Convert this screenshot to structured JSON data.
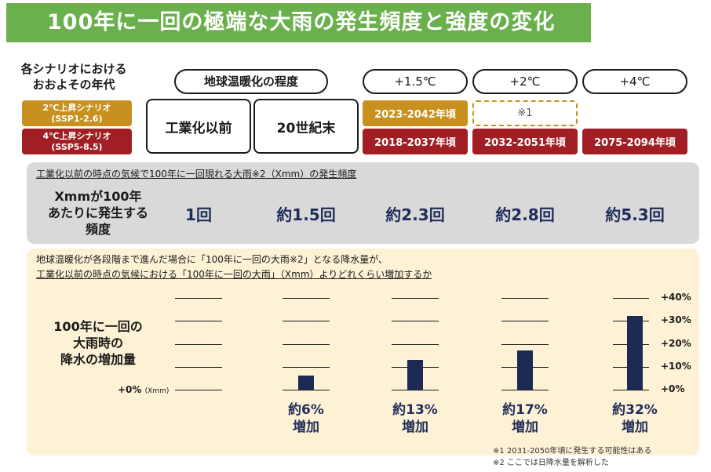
{
  "title": "100年に一回の極端な大雨の発生頻度と強度の変化",
  "scenario_header": "各シナリオにおける\nおおよその年代",
  "scenarios": [
    {
      "label_line1": "2℃上昇シナリオ",
      "label_line2": "(SSP1-2.6)",
      "color": "#c8901e"
    },
    {
      "label_line1": "4℃上昇シナリオ",
      "label_line2": "(SSP5-8.5)",
      "color": "#a11f24"
    }
  ],
  "warming_header": "地球温暖化の程度",
  "levels": [
    {
      "label": "工業化以前"
    },
    {
      "label": "20世紀末"
    },
    {
      "label": "+1.5℃",
      "ssp126": "2023-2042年頃",
      "ssp585": "2018-2037年頃"
    },
    {
      "label": "+2℃",
      "ssp126": "※1",
      "ssp585": "2032-2051年頃"
    },
    {
      "label": "+4℃",
      "ssp126": "",
      "ssp585": "2075-2094年頃"
    }
  ],
  "freq_caption": "工業化以前の時点の気候で100年に一回現れる大雨※2（Xmm）の発生頻度",
  "freq_row_label": "Xmmが100年\nあたりに発生する\n頻度",
  "freq_values": [
    "1回",
    "約1.5回",
    "約2.3回",
    "約2.8回",
    "約5.3回"
  ],
  "inc_caption_line1": "地球温暖化が各段階まで進んだ場合に「100年に一回の大雨※2」となる降水量が、",
  "inc_caption_line2": "工業化以前の時点の気候における「100年に一回の大雨」（Xmm）よりどれくらい増加するか",
  "inc_row_label": "100年に一回の\n大雨時の\n降水の増加量",
  "baseline_label": "+0%",
  "baseline_unit": "(Xmm)",
  "inc_labels": [
    "約6%\n増加",
    "約13%\n増加",
    "約17%\n増加",
    "約32%\n増加"
  ],
  "chart_data": {
    "type": "bar",
    "categories": [
      "20世紀末",
      "+1.5℃",
      "+2℃",
      "+4℃"
    ],
    "values": [
      6,
      13,
      17,
      32
    ],
    "ylim": [
      0,
      40
    ],
    "yticks": [
      "+0%",
      "+10%",
      "+20%",
      "+30%",
      "+40%"
    ],
    "ytick_values": [
      0,
      10,
      20,
      30,
      40
    ],
    "bar_color": "#1c2a56"
  },
  "notes": [
    "※1 2031-2050年頃に発生する可能性はある",
    "※2 ここでは日降水量を解析した"
  ]
}
